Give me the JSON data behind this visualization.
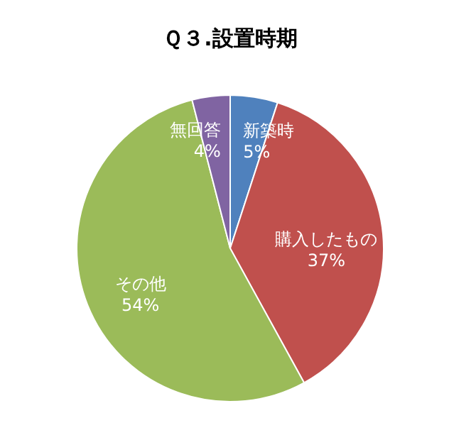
{
  "chart_data": {
    "type": "pie",
    "title": "Ｑ３.設置時期",
    "categories": [
      "新築時",
      "購入したもの",
      "その他",
      "無回答"
    ],
    "values": [
      5,
      37,
      54,
      4
    ],
    "colors": [
      "#4f81bd",
      "#c0504d",
      "#9bbb59",
      "#8064a2"
    ],
    "value_labels": [
      "5%",
      "37%",
      "54%",
      "4%"
    ],
    "legend": false
  }
}
